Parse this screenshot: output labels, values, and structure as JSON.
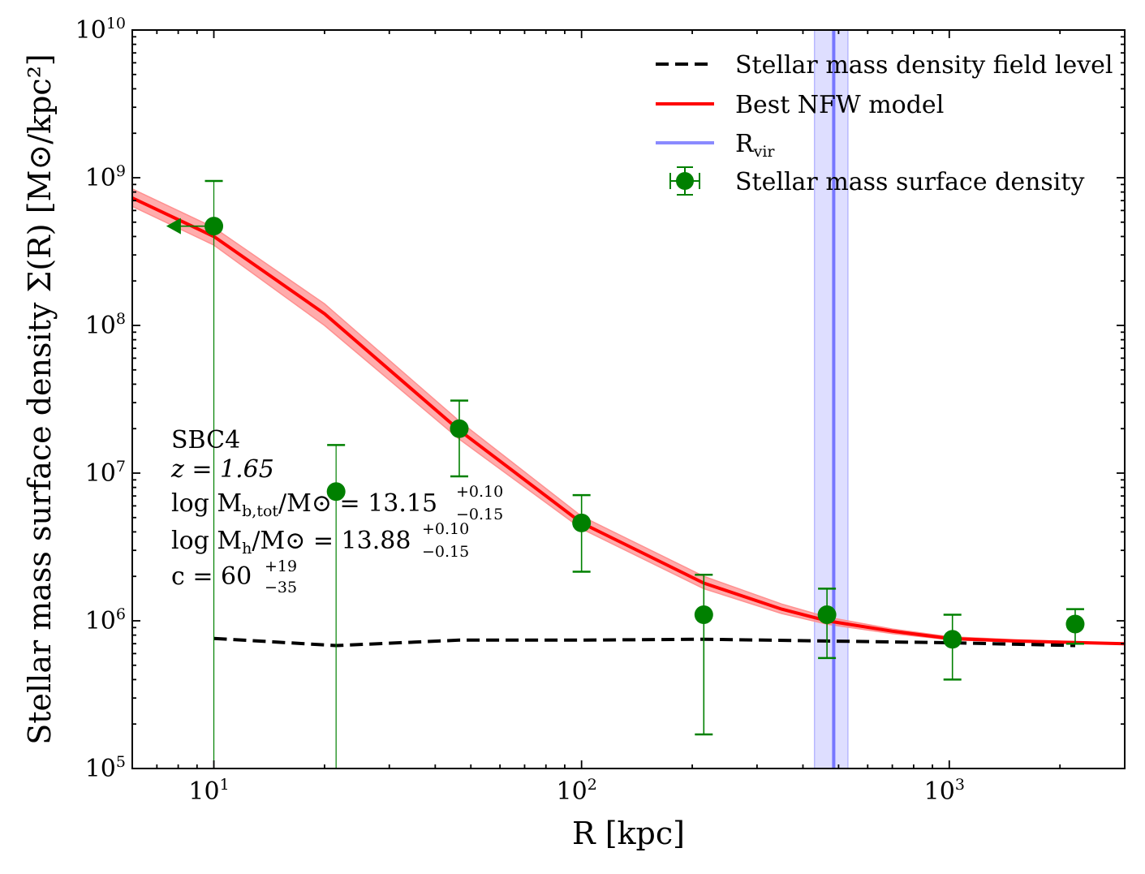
{
  "chart_data": {
    "type": "scatter",
    "xscale": "log",
    "yscale": "log",
    "xlim": [
      6,
      3000
    ],
    "ylim": [
      100000,
      10000000000
    ],
    "xlabel": "R [kpc]",
    "ylabel": "Stellar mass surface density Σ(R) [M⊙/kpc²]",
    "x_ticks": [
      {
        "base": "10",
        "exp": "1",
        "value": 10
      },
      {
        "base": "10",
        "exp": "2",
        "value": 100
      },
      {
        "base": "10",
        "exp": "3",
        "value": 1000
      }
    ],
    "y_ticks": [
      {
        "base": "10",
        "exp": "5",
        "value": 100000
      },
      {
        "base": "10",
        "exp": "6",
        "value": 1000000
      },
      {
        "base": "10",
        "exp": "7",
        "value": 10000000
      },
      {
        "base": "10",
        "exp": "8",
        "value": 100000000
      },
      {
        "base": "10",
        "exp": "9",
        "value": 1000000000
      },
      {
        "base": "10",
        "exp": "10",
        "value": 10000000000
      }
    ],
    "legend": {
      "position": "top-right",
      "entries": [
        {
          "key": "field",
          "label": "Stellar mass density field level"
        },
        {
          "key": "nfw",
          "label": "Best NFW model"
        },
        {
          "key": "rvir",
          "label_main": "R",
          "label_sub": "vir"
        },
        {
          "key": "points",
          "label": "Stellar mass surface density"
        }
      ]
    },
    "series": [
      {
        "key": "points",
        "color": "#008000",
        "points": [
          {
            "x": 10,
            "y": 470000000,
            "y_low": 100000,
            "y_high": 950000000,
            "x_low": 7.5,
            "x_arrow": true
          },
          {
            "x": 21.5,
            "y": 7500000,
            "y_low": 100000,
            "y_high": 15500000
          },
          {
            "x": 46.5,
            "y": 20000000,
            "y_low": 9500000,
            "y_high": 31000000
          },
          {
            "x": 100,
            "y": 4600000,
            "y_low": 2150000,
            "y_high": 7100000
          },
          {
            "x": 215,
            "y": 1100000,
            "y_low": 170000,
            "y_high": 2050000
          },
          {
            "x": 465,
            "y": 1100000,
            "y_low": 560000,
            "y_high": 1650000
          },
          {
            "x": 1020,
            "y": 750000,
            "y_low": 400000,
            "y_high": 1100000
          },
          {
            "x": 2200,
            "y": 950000,
            "y_low": 700000,
            "y_high": 1200000
          }
        ]
      },
      {
        "key": "nfw",
        "color": "#ff0000",
        "band_color": "#ff8080",
        "x": [
          6,
          10,
          20,
          46.5,
          100,
          215,
          350,
          465,
          700,
          1000,
          1500,
          3000
        ],
        "y": [
          730000000,
          400000000,
          120000000,
          19500000,
          4600000,
          1800000,
          1200000,
          1000000,
          850000,
          760000,
          730000,
          700000
        ],
        "y_low": [
          640000000,
          350000000,
          100000000,
          17000000,
          4200000,
          1650000,
          1120000,
          950000,
          820000,
          745000,
          720000,
          695000
        ],
        "y_high": [
          840000000,
          460000000,
          140000000,
          22500000,
          5100000,
          2000000,
          1300000,
          1060000,
          880000,
          780000,
          745000,
          705000
        ]
      },
      {
        "key": "field",
        "color": "#000000",
        "x": [
          10,
          21.5,
          46.5,
          100,
          215,
          465,
          1020,
          2200
        ],
        "y": [
          760000,
          680000,
          740000,
          740000,
          750000,
          730000,
          710000,
          680000
        ]
      },
      {
        "key": "rvir",
        "color": "#7777ff",
        "band_color": "#ccccff",
        "x": 485,
        "x_low": 430,
        "x_high": 530
      }
    ],
    "annotation": {
      "position": "middle-left",
      "name": "SBC4",
      "z_text": "z = 1.65",
      "mb_text": "log M",
      "mb_sub": "b,tot",
      "mb_rest": "/M⊙ = 13.15",
      "mb_up": "+0.10",
      "mb_down": "−0.15",
      "mh_text": "log M",
      "mh_sub": "h",
      "mh_rest": "/M⊙ = 13.88",
      "mh_up": "+0.10",
      "mh_down": "−0.15",
      "c_text": "c = 60",
      "c_up": "+19",
      "c_down": "−35"
    }
  }
}
